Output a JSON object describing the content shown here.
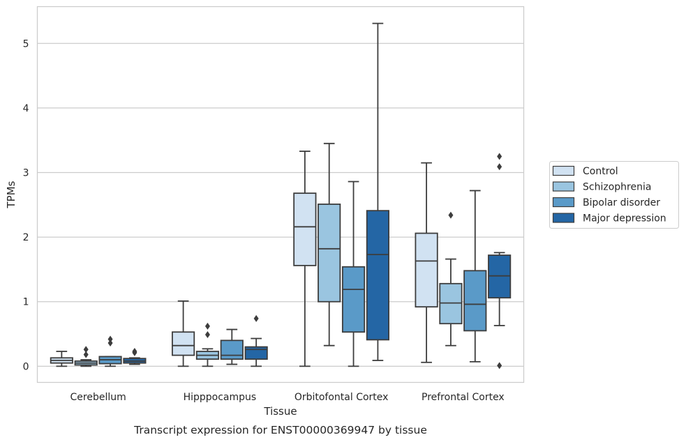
{
  "chart_data": {
    "type": "box",
    "title": "",
    "caption": "Transcript expression for ENST00000369947 by tissue",
    "xlabel": "Tissue",
    "ylabel": "TPMs",
    "ylim": [
      -0.25,
      5.57
    ],
    "yticks": [
      0,
      1,
      2,
      3,
      4,
      5
    ],
    "grid": "horizontal",
    "legend_position": "right",
    "categories": [
      "Cerebellum",
      "Hipppocampus",
      "Orbitofontal Cortex",
      "Prefrontal Cortex"
    ],
    "series": [
      {
        "name": "Control",
        "color": "#d1e2f2",
        "boxes": [
          {
            "whislo": 0.0,
            "q1": 0.05,
            "med": 0.09,
            "q3": 0.13,
            "whishi": 0.23,
            "fliers": []
          },
          {
            "whislo": 0.0,
            "q1": 0.17,
            "med": 0.32,
            "q3": 0.53,
            "whishi": 1.01,
            "fliers": []
          },
          {
            "whislo": 0.0,
            "q1": 1.56,
            "med": 2.16,
            "q3": 2.68,
            "whishi": 3.33,
            "fliers": []
          },
          {
            "whislo": 0.06,
            "q1": 0.92,
            "med": 1.63,
            "q3": 2.06,
            "whishi": 3.15,
            "fliers": []
          }
        ]
      },
      {
        "name": "Schizophrenia",
        "color": "#9ac5e0",
        "boxes": [
          {
            "whislo": 0.0,
            "q1": 0.02,
            "med": 0.05,
            "q3": 0.08,
            "whishi": 0.1,
            "fliers": [
              0.18,
              0.26
            ]
          },
          {
            "whislo": 0.0,
            "q1": 0.11,
            "med": 0.17,
            "q3": 0.23,
            "whishi": 0.27,
            "fliers": [
              0.49,
              0.62
            ]
          },
          {
            "whislo": 0.32,
            "q1": 1.0,
            "med": 1.82,
            "q3": 2.51,
            "whishi": 3.45,
            "fliers": []
          },
          {
            "whislo": 0.32,
            "q1": 0.66,
            "med": 0.98,
            "q3": 1.28,
            "whishi": 1.66,
            "fliers": [
              2.34
            ]
          }
        ]
      },
      {
        "name": "Bipolar disorder",
        "color": "#5a9ac8",
        "boxes": [
          {
            "whislo": 0.0,
            "q1": 0.04,
            "med": 0.1,
            "q3": 0.15,
            "whishi": 0.15,
            "fliers": [
              0.36,
              0.42
            ]
          },
          {
            "whislo": 0.03,
            "q1": 0.11,
            "med": 0.17,
            "q3": 0.4,
            "whishi": 0.57,
            "fliers": []
          },
          {
            "whislo": 0.0,
            "q1": 0.53,
            "med": 1.19,
            "q3": 1.54,
            "whishi": 2.86,
            "fliers": []
          },
          {
            "whislo": 0.07,
            "q1": 0.55,
            "med": 0.96,
            "q3": 1.48,
            "whishi": 2.72,
            "fliers": []
          }
        ]
      },
      {
        "name": "Major depression",
        "color": "#2466a5",
        "boxes": [
          {
            "whislo": 0.03,
            "q1": 0.05,
            "med": 0.08,
            "q3": 0.12,
            "whishi": 0.13,
            "fliers": [
              0.21,
              0.23
            ]
          },
          {
            "whislo": 0.0,
            "q1": 0.11,
            "med": 0.26,
            "q3": 0.3,
            "whishi": 0.43,
            "fliers": [
              0.74
            ]
          },
          {
            "whislo": 0.09,
            "q1": 0.41,
            "med": 1.73,
            "q3": 2.41,
            "whishi": 5.31,
            "fliers": []
          },
          {
            "whislo": 0.63,
            "q1": 1.06,
            "med": 1.4,
            "q3": 1.72,
            "whishi": 1.76,
            "fliers": [
              0.01,
              3.09,
              3.25
            ]
          }
        ]
      }
    ]
  }
}
